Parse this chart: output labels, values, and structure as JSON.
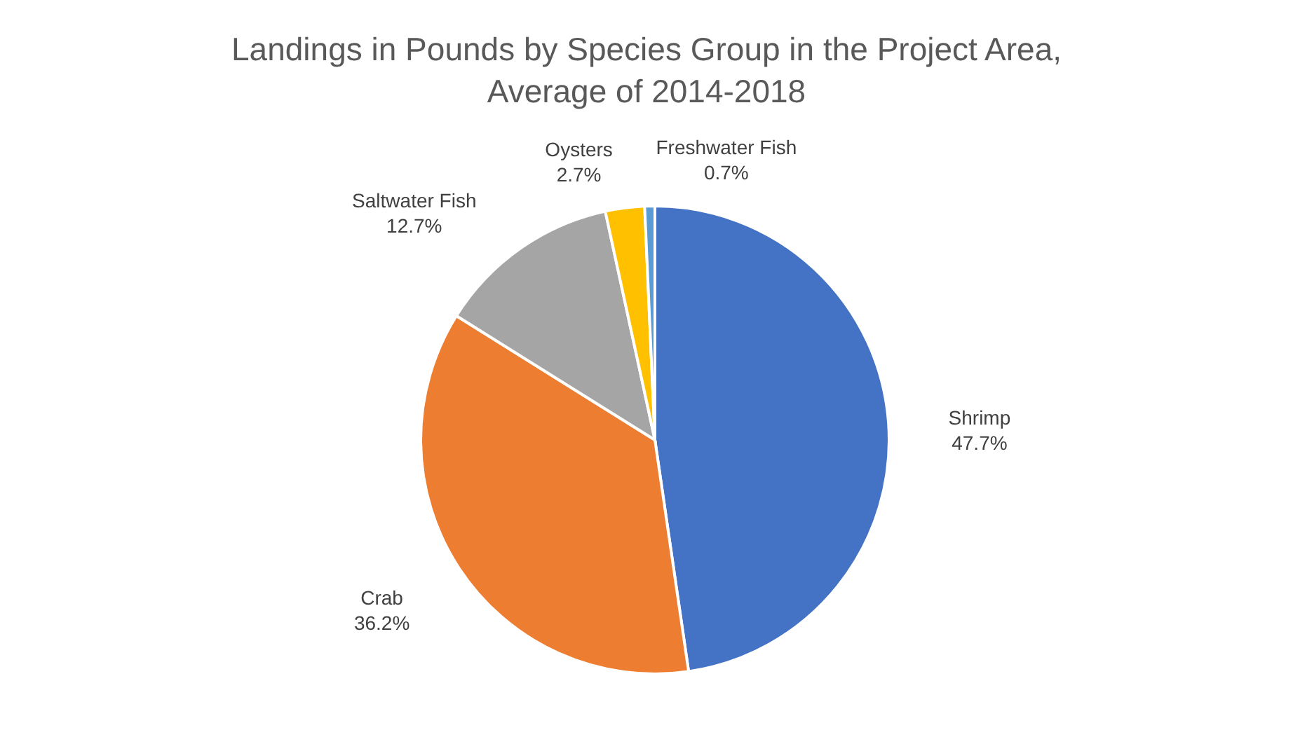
{
  "chart_data": {
    "type": "pie",
    "title": "Landings in Pounds by Species Group in the Project Area, Average of 2014-2018",
    "categories": [
      "Shrimp",
      "Crab",
      "Saltwater Fish",
      "Oysters",
      "Freshwater Fish"
    ],
    "values": [
      47.7,
      36.2,
      12.7,
      2.7,
      0.7
    ],
    "value_labels": [
      "47.7%",
      "36.2%",
      "12.7%",
      "2.7%",
      "0.7%"
    ],
    "colors": [
      "#4472c4",
      "#ed7d31",
      "#a5a5a5",
      "#ffc000",
      "#5b9bd5"
    ],
    "legend": false
  }
}
